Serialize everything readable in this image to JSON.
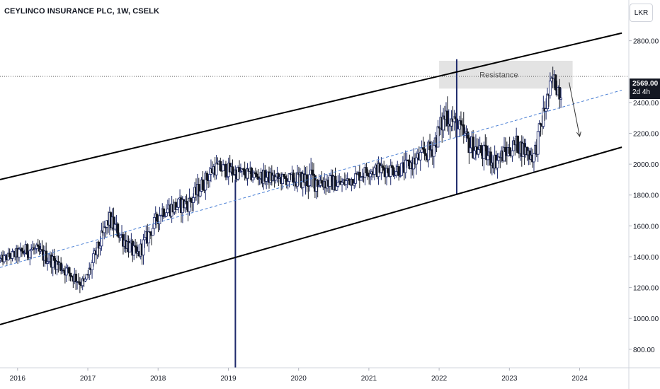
{
  "header": {
    "title": "CEYLINCO INSURANCE PLC, 1W, CSELK",
    "currency_label": "LKR"
  },
  "price_badge": {
    "price": "2569.00",
    "countdown": "2d 4h"
  },
  "colors": {
    "up": "#1e2a6b",
    "down": "#131722",
    "midline": "#4a7fd4",
    "channel": "#000000",
    "zone": "#d9d9d9"
  },
  "chart_data": {
    "type": "candlestick",
    "title": "CEYLINCO INSURANCE PLC, 1W, CSELK",
    "x_ticks": [
      "2016",
      "2017",
      "2018",
      "2019",
      "2020",
      "2021",
      "2022",
      "2023",
      "2024"
    ],
    "y_ticks": [
      "800.00",
      "1000.00",
      "1200.00",
      "1400.00",
      "1600.00",
      "1800.00",
      "2000.00",
      "2200.00",
      "2400.00",
      "2800.00"
    ],
    "ylim": [
      680,
      2890
    ],
    "xlim": [
      2015.75,
      2024.7
    ],
    "last_price": 2569,
    "annotations": [
      {
        "type": "zone",
        "label": "Resistance",
        "x": [
          2022.0,
          2023.9
        ],
        "y": [
          2490,
          2670
        ]
      }
    ],
    "channel": {
      "upper": [
        [
          2015.75,
          1900
        ],
        [
          2024.6,
          2850
        ]
      ],
      "lower": [
        [
          2015.75,
          960
        ],
        [
          2024.6,
          2110
        ]
      ],
      "mid": [
        [
          2015.75,
          1330
        ],
        [
          2024.6,
          2480
        ]
      ]
    },
    "arrow": {
      "from": [
        2023.85,
        2530
      ],
      "to": [
        2024.0,
        2180
      ]
    },
    "wicks": [
      {
        "x": 2019.1,
        "low": 680,
        "high": 1900
      },
      {
        "x": 2022.25,
        "low": 1800,
        "high": 2680
      }
    ],
    "anchors": [
      {
        "x": 2015.75,
        "price": 1380,
        "spread": 40
      },
      {
        "x": 2016.2,
        "price": 1450,
        "spread": 80
      },
      {
        "x": 2016.55,
        "price": 1360,
        "spread": 70
      },
      {
        "x": 2016.95,
        "price": 1220,
        "spread": 70
      },
      {
        "x": 2017.3,
        "price": 1640,
        "spread": 90
      },
      {
        "x": 2017.7,
        "price": 1400,
        "spread": 80
      },
      {
        "x": 2018.05,
        "price": 1700,
        "spread": 80
      },
      {
        "x": 2018.45,
        "price": 1750,
        "spread": 90
      },
      {
        "x": 2018.8,
        "price": 1980,
        "spread": 80
      },
      {
        "x": 2019.3,
        "price": 1930,
        "spread": 70
      },
      {
        "x": 2019.8,
        "price": 1900,
        "spread": 60
      },
      {
        "x": 2020.2,
        "price": 1900,
        "spread": 120
      },
      {
        "x": 2020.6,
        "price": 1870,
        "spread": 70
      },
      {
        "x": 2021.0,
        "price": 1960,
        "spread": 70
      },
      {
        "x": 2021.5,
        "price": 1970,
        "spread": 80
      },
      {
        "x": 2021.9,
        "price": 2100,
        "spread": 100
      },
      {
        "x": 2022.1,
        "price": 2330,
        "spread": 130
      },
      {
        "x": 2022.45,
        "price": 2120,
        "spread": 110
      },
      {
        "x": 2022.8,
        "price": 2020,
        "spread": 90
      },
      {
        "x": 2023.1,
        "price": 2130,
        "spread": 90
      },
      {
        "x": 2023.35,
        "price": 2050,
        "spread": 90
      },
      {
        "x": 2023.5,
        "price": 2350,
        "spread": 110
      },
      {
        "x": 2023.62,
        "price": 2550,
        "spread": 100
      },
      {
        "x": 2023.75,
        "price": 2450,
        "spread": 90
      }
    ]
  }
}
